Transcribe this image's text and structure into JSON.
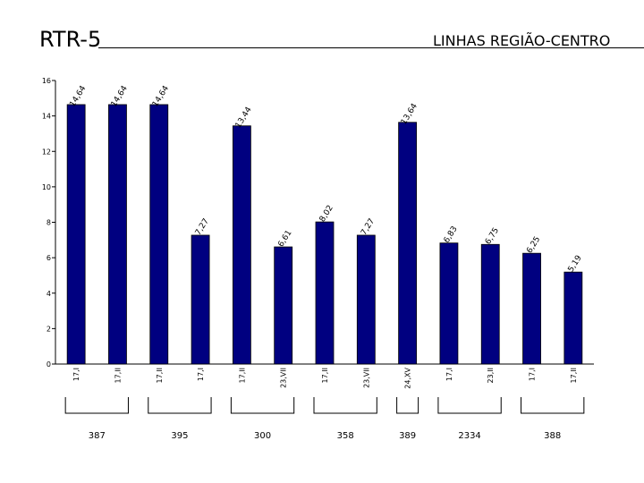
{
  "header": {
    "title": "RTR-5",
    "subtitle": "LINHAS REGIÃO-CENTRO"
  },
  "chart_data": {
    "type": "bar",
    "categories": [
      "17,I",
      "17,II",
      "17,II",
      "17,I",
      "17,II",
      "23,VII",
      "17,II",
      "23,VII",
      "24,XV",
      "17,I",
      "23,II",
      "17,I",
      "17,II"
    ],
    "values": [
      14.64,
      14.64,
      14.64,
      7.27,
      13.44,
      6.61,
      8.02,
      7.27,
      13.64,
      6.83,
      6.75,
      6.25,
      5.19
    ],
    "value_labels": [
      "14,64",
      "14,64",
      "14,64",
      "7,27",
      "13,44",
      "6,61",
      "8,02",
      "7,27",
      "13,64",
      "6,83",
      "6,75",
      "6,25",
      "5,19"
    ],
    "ylim": [
      0,
      16
    ],
    "yticks": [
      0,
      2,
      4,
      6,
      8,
      10,
      12,
      14,
      16
    ],
    "bar_color": "#000080",
    "groups": [
      {
        "label": "387",
        "start": 0,
        "end": 1
      },
      {
        "label": "395",
        "start": 2,
        "end": 3
      },
      {
        "label": "300",
        "start": 4,
        "end": 5
      },
      {
        "label": "358",
        "start": 6,
        "end": 7
      },
      {
        "label": "389",
        "start": 8,
        "end": 8
      },
      {
        "label": "2334",
        "start": 9,
        "end": 10
      },
      {
        "label": "388",
        "start": 11,
        "end": 12
      }
    ]
  }
}
